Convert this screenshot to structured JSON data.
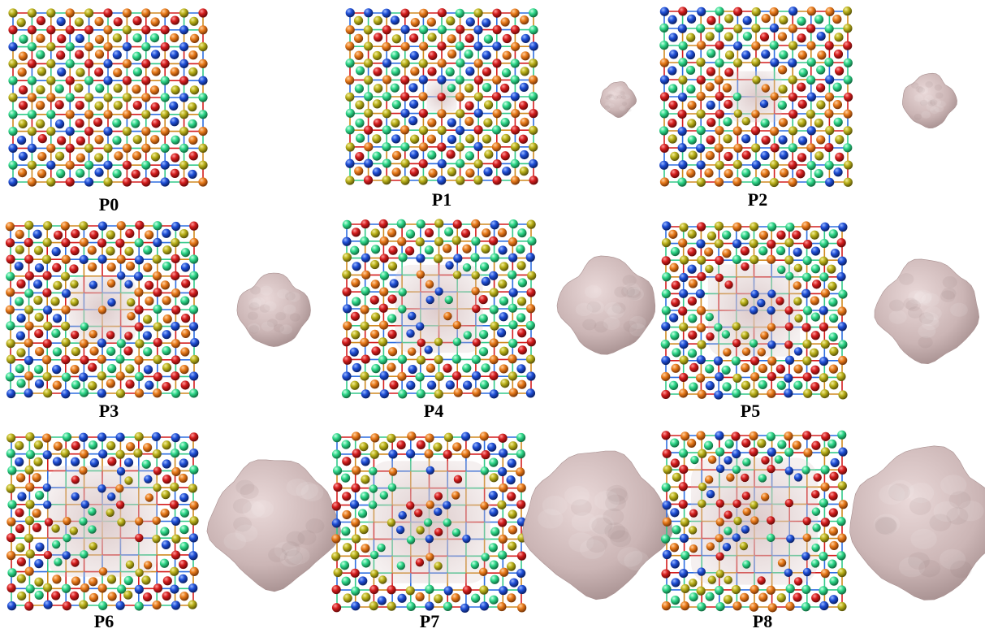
{
  "panels": [
    {
      "label": "P0",
      "defect": 0,
      "blob": null
    },
    {
      "label": "P1",
      "defect": 0.18,
      "blob": 0.13
    },
    {
      "label": "P2",
      "defect": 0.3,
      "blob": 0.2
    },
    {
      "label": "P3",
      "defect": 0.4,
      "blob": 0.27
    },
    {
      "label": "P4",
      "defect": 0.52,
      "blob": 0.36
    },
    {
      "label": "P5",
      "defect": 0.55,
      "blob": 0.38
    },
    {
      "label": "P6",
      "defect": 0.66,
      "blob": 0.48
    },
    {
      "label": "P7",
      "defect": 0.72,
      "blob": 0.54
    },
    {
      "label": "P8",
      "defect": 0.74,
      "blob": 0.56
    }
  ],
  "atom_colors": [
    "#d41e1e",
    "#1f4fd6",
    "#2fd88a",
    "#e87a1a",
    "#b9b01a"
  ],
  "bond_colors": [
    "#d41e1e",
    "#2f6fe0",
    "#33c98a",
    "#d08a20"
  ],
  "void_color": "#cbb5b5"
}
